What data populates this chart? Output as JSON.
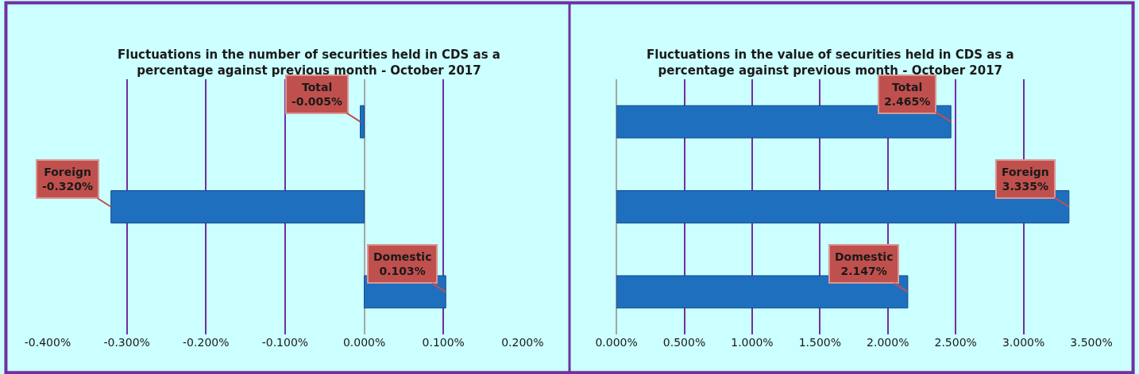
{
  "chart_data": [
    {
      "type": "bar",
      "orientation": "horizontal",
      "title": "Fluctuations in the number of securities held in CDS as a percentage against previous month - October 2017",
      "categories": [
        "Total",
        "Foreign",
        "Domestic"
      ],
      "series": [
        {
          "color": "#1f6fbf",
          "values": [
            -0.005,
            -0.32,
            0.103
          ],
          "value_labels": [
            "-0.005%",
            "-0.320%",
            "0.103%"
          ]
        }
      ],
      "xlim": [
        -0.4,
        0.2
      ],
      "xticks": [
        {
          "value": -0.4,
          "label": "-0.400%"
        },
        {
          "value": -0.3,
          "label": "-0.300%"
        },
        {
          "value": -0.2,
          "label": "-0.200%"
        },
        {
          "value": -0.1,
          "label": "-0.100%"
        },
        {
          "value": 0,
          "label": "0.000%"
        },
        {
          "value": 0.1,
          "label": "0.100%"
        },
        {
          "value": 0.2,
          "label": "0.200%"
        }
      ],
      "grid": "x"
    },
    {
      "type": "bar",
      "orientation": "horizontal",
      "title": "Fluctuations in the value of securities held in CDS as a percentage against previous month - October 2017",
      "categories": [
        "Total",
        "Foreign",
        "Domestic"
      ],
      "series": [
        {
          "color": "#1f6fbf",
          "values": [
            2.465,
            3.335,
            2.147
          ],
          "value_labels": [
            "2.465%",
            "3.335%",
            "2.147%"
          ]
        }
      ],
      "xlim": [
        0,
        3.5
      ],
      "xticks": [
        {
          "value": 0,
          "label": "0.000%"
        },
        {
          "value": 0.5,
          "label": "0.500%"
        },
        {
          "value": 1,
          "label": "1.000%"
        },
        {
          "value": 1.5,
          "label": "1.500%"
        },
        {
          "value": 2,
          "label": "2.000%"
        },
        {
          "value": 2.5,
          "label": "2.500%"
        },
        {
          "value": 3,
          "label": "3.000%"
        },
        {
          "value": 3.5,
          "label": "3.500%"
        }
      ],
      "grid": "x"
    }
  ]
}
